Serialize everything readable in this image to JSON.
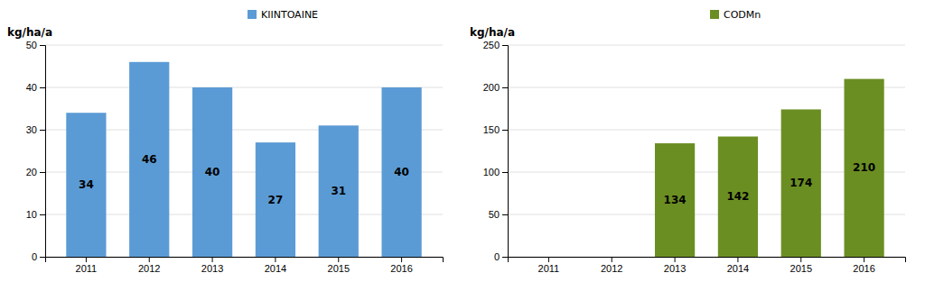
{
  "chart_data": [
    {
      "type": "bar",
      "ylabel": "kg/ha/a",
      "categories": [
        "2011",
        "2012",
        "2013",
        "2014",
        "2015",
        "2016"
      ],
      "series": [
        {
          "name": "KIINTOAINE",
          "color": "#5B9BD5",
          "values": [
            34,
            46,
            40,
            27,
            31,
            40
          ]
        }
      ],
      "ylim": [
        0,
        50
      ],
      "yticks": [
        0,
        10,
        20,
        30,
        40,
        50
      ],
      "grid": true,
      "data_labels": true,
      "legend": "top"
    },
    {
      "type": "bar",
      "ylabel": "kg/ha/a",
      "categories": [
        "2011",
        "2012",
        "2013",
        "2014",
        "2015",
        "2016"
      ],
      "series": [
        {
          "name": "CODMn",
          "color": "#6B8E23",
          "values": [
            null,
            null,
            134,
            142,
            174,
            210
          ]
        }
      ],
      "ylim": [
        0,
        250
      ],
      "yticks": [
        0,
        50,
        100,
        150,
        200,
        250
      ],
      "grid": true,
      "data_labels": true,
      "legend": "top"
    }
  ]
}
